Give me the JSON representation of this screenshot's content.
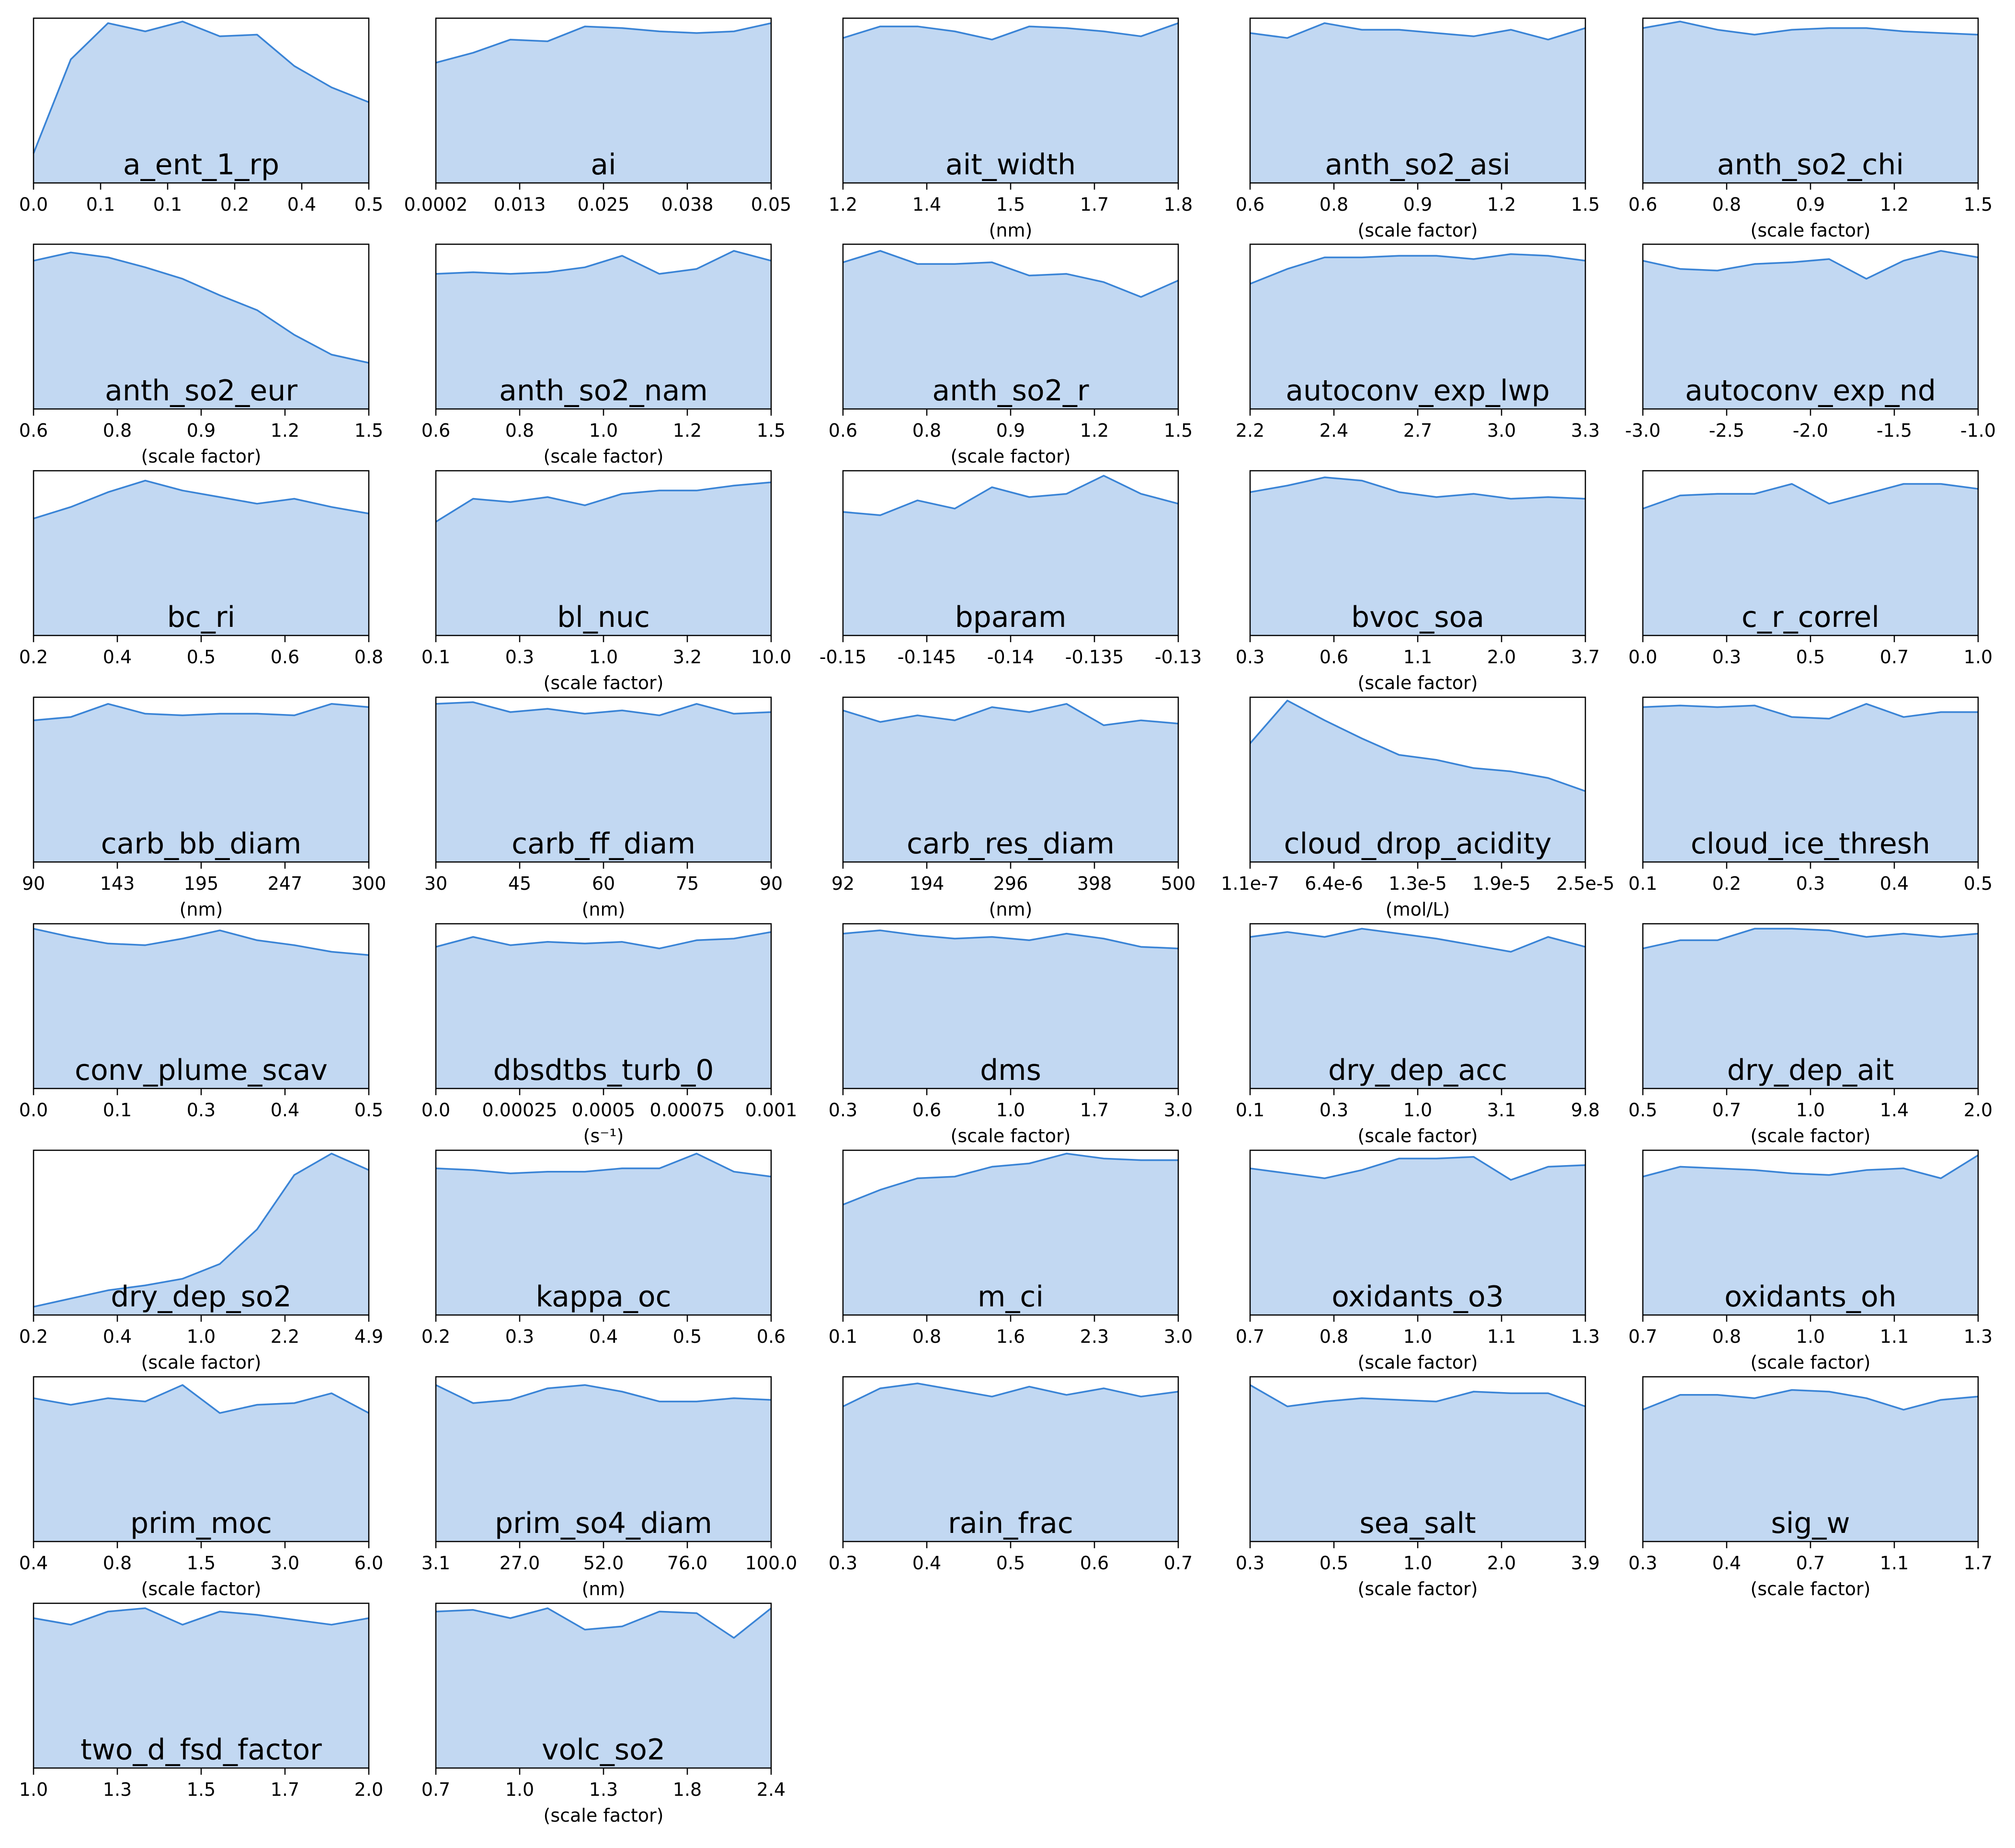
{
  "style": {
    "fill_color": "#c2d8f2",
    "line_color": "#3a84d6",
    "frame_color": "#000000"
  },
  "chart_data": [
    {
      "type": "area",
      "title": "a_ent_1_rp",
      "xlabel": "",
      "ticks": [
        "0.0",
        "0.1",
        "0.1",
        "0.2",
        "0.4",
        "0.5"
      ],
      "values": [
        0.18,
        0.75,
        0.97,
        0.92,
        0.98,
        0.89,
        0.9,
        0.71,
        0.58,
        0.49
      ]
    },
    {
      "type": "area",
      "title": "ai",
      "xlabel": "",
      "ticks": [
        "0.0002",
        "0.013",
        "0.025",
        "0.038",
        "0.05"
      ],
      "values": [
        0.73,
        0.79,
        0.87,
        0.86,
        0.95,
        0.94,
        0.92,
        0.91,
        0.92,
        0.97
      ]
    },
    {
      "type": "area",
      "title": "ait_width",
      "xlabel": "(nm)",
      "ticks": [
        "1.2",
        "1.4",
        "1.5",
        "1.7",
        "1.8"
      ],
      "values": [
        0.88,
        0.95,
        0.95,
        0.92,
        0.87,
        0.95,
        0.94,
        0.92,
        0.89,
        0.97
      ]
    },
    {
      "type": "area",
      "title": "anth_so2_asi",
      "xlabel": "(scale factor)",
      "ticks": [
        "0.6",
        "0.8",
        "0.9",
        "1.2",
        "1.5"
      ],
      "values": [
        0.91,
        0.88,
        0.97,
        0.93,
        0.93,
        0.91,
        0.89,
        0.93,
        0.87,
        0.94
      ]
    },
    {
      "type": "area",
      "title": "anth_so2_chi",
      "xlabel": "(scale factor)",
      "ticks": [
        "0.6",
        "0.8",
        "0.9",
        "1.2",
        "1.5"
      ],
      "values": [
        0.94,
        0.98,
        0.93,
        0.9,
        0.93,
        0.94,
        0.94,
        0.92,
        0.91,
        0.9
      ]
    },
    {
      "type": "area",
      "title": "anth_so2_eur",
      "xlabel": "(scale factor)",
      "ticks": [
        "0.6",
        "0.8",
        "0.9",
        "1.2",
        "1.5"
      ],
      "values": [
        0.9,
        0.95,
        0.92,
        0.86,
        0.79,
        0.69,
        0.6,
        0.45,
        0.33,
        0.28
      ]
    },
    {
      "type": "area",
      "title": "anth_so2_nam",
      "xlabel": "(scale factor)",
      "ticks": [
        "0.6",
        "0.8",
        "1.0",
        "1.2",
        "1.5"
      ],
      "values": [
        0.82,
        0.83,
        0.82,
        0.83,
        0.86,
        0.93,
        0.82,
        0.85,
        0.96,
        0.9
      ]
    },
    {
      "type": "area",
      "title": "anth_so2_r",
      "xlabel": "(scale factor)",
      "ticks": [
        "0.6",
        "0.8",
        "0.9",
        "1.2",
        "1.5"
      ],
      "values": [
        0.89,
        0.96,
        0.88,
        0.88,
        0.89,
        0.81,
        0.82,
        0.77,
        0.68,
        0.78
      ]
    },
    {
      "type": "area",
      "title": "autoconv_exp_lwp",
      "xlabel": "",
      "ticks": [
        "2.2",
        "2.4",
        "2.7",
        "3.0",
        "3.3"
      ],
      "values": [
        0.76,
        0.85,
        0.92,
        0.92,
        0.93,
        0.93,
        0.91,
        0.94,
        0.93,
        0.9
      ]
    },
    {
      "type": "area",
      "title": "autoconv_exp_nd",
      "xlabel": "",
      "ticks": [
        "-3.0",
        "-2.5",
        "-2.0",
        "-1.5",
        "-1.0"
      ],
      "values": [
        0.9,
        0.85,
        0.84,
        0.88,
        0.89,
        0.91,
        0.79,
        0.9,
        0.96,
        0.92
      ]
    },
    {
      "type": "area",
      "title": "bc_ri",
      "xlabel": "",
      "ticks": [
        "0.2",
        "0.4",
        "0.5",
        "0.6",
        "0.8"
      ],
      "values": [
        0.71,
        0.78,
        0.87,
        0.94,
        0.88,
        0.84,
        0.8,
        0.83,
        0.78,
        0.74
      ]
    },
    {
      "type": "area",
      "title": "bl_nuc",
      "xlabel": "(scale factor)",
      "ticks": [
        "0.1",
        "0.3",
        "1.0",
        "3.2",
        "10.0"
      ],
      "values": [
        0.69,
        0.83,
        0.81,
        0.84,
        0.79,
        0.86,
        0.88,
        0.88,
        0.91,
        0.93
      ]
    },
    {
      "type": "area",
      "title": "bparam",
      "xlabel": "",
      "ticks": [
        "-0.15",
        "-0.145",
        "-0.14",
        "-0.135",
        "-0.13"
      ],
      "values": [
        0.75,
        0.73,
        0.82,
        0.77,
        0.9,
        0.84,
        0.86,
        0.97,
        0.86,
        0.8
      ]
    },
    {
      "type": "area",
      "title": "bvoc_soa",
      "xlabel": "(scale factor)",
      "ticks": [
        "0.3",
        "0.6",
        "1.1",
        "2.0",
        "3.7"
      ],
      "values": [
        0.87,
        0.91,
        0.96,
        0.94,
        0.87,
        0.84,
        0.86,
        0.83,
        0.84,
        0.83
      ]
    },
    {
      "type": "area",
      "title": "c_r_correl",
      "xlabel": "",
      "ticks": [
        "0.0",
        "0.3",
        "0.5",
        "0.7",
        "1.0"
      ],
      "values": [
        0.77,
        0.85,
        0.86,
        0.86,
        0.92,
        0.8,
        0.86,
        0.92,
        0.92,
        0.89
      ]
    },
    {
      "type": "area",
      "title": "carb_bb_diam",
      "xlabel": "(nm)",
      "ticks": [
        "90",
        "143",
        "195",
        "247",
        "300"
      ],
      "values": [
        0.86,
        0.88,
        0.96,
        0.9,
        0.89,
        0.9,
        0.9,
        0.89,
        0.96,
        0.94
      ]
    },
    {
      "type": "area",
      "title": "carb_ff_diam",
      "xlabel": "(nm)",
      "ticks": [
        "30",
        "45",
        "60",
        "75",
        "90"
      ],
      "values": [
        0.96,
        0.97,
        0.91,
        0.93,
        0.9,
        0.92,
        0.89,
        0.96,
        0.9,
        0.91
      ]
    },
    {
      "type": "area",
      "title": "carb_res_diam",
      "xlabel": "(nm)",
      "ticks": [
        "92",
        "194",
        "296",
        "398",
        "500"
      ],
      "values": [
        0.92,
        0.85,
        0.89,
        0.86,
        0.94,
        0.91,
        0.96,
        0.83,
        0.86,
        0.84
      ]
    },
    {
      "type": "area",
      "title": "cloud_drop_acidity",
      "xlabel": "(mol/L)",
      "ticks": [
        "1.1e-7",
        "6.4e-6",
        "1.3e-5",
        "1.9e-5",
        "2.5e-5"
      ],
      "values": [
        0.72,
        0.98,
        0.86,
        0.75,
        0.65,
        0.62,
        0.57,
        0.55,
        0.51,
        0.43
      ]
    },
    {
      "type": "area",
      "title": "cloud_ice_thresh",
      "xlabel": "",
      "ticks": [
        "0.1",
        "0.2",
        "0.3",
        "0.4",
        "0.5"
      ],
      "values": [
        0.94,
        0.95,
        0.94,
        0.95,
        0.88,
        0.87,
        0.96,
        0.88,
        0.91,
        0.91
      ]
    },
    {
      "type": "area",
      "title": "conv_plume_scav",
      "xlabel": "",
      "ticks": [
        "0.0",
        "0.1",
        "0.3",
        "0.4",
        "0.5"
      ],
      "values": [
        0.97,
        0.92,
        0.88,
        0.87,
        0.91,
        0.96,
        0.9,
        0.87,
        0.83,
        0.81
      ]
    },
    {
      "type": "area",
      "title": "dbsdtbs_turb_0",
      "xlabel": "(s⁻¹)",
      "ticks": [
        "0.0",
        "0.00025",
        "0.0005",
        "0.00075",
        "0.001"
      ],
      "values": [
        0.86,
        0.92,
        0.87,
        0.89,
        0.88,
        0.89,
        0.85,
        0.9,
        0.91,
        0.95
      ]
    },
    {
      "type": "area",
      "title": "dms",
      "xlabel": "(scale factor)",
      "ticks": [
        "0.3",
        "0.6",
        "1.0",
        "1.7",
        "3.0"
      ],
      "values": [
        0.94,
        0.96,
        0.93,
        0.91,
        0.92,
        0.9,
        0.94,
        0.91,
        0.86,
        0.85
      ]
    },
    {
      "type": "area",
      "title": "dry_dep_acc",
      "xlabel": "(scale factor)",
      "ticks": [
        "0.1",
        "0.3",
        "1.0",
        "3.1",
        "9.8"
      ],
      "values": [
        0.92,
        0.95,
        0.92,
        0.97,
        0.94,
        0.91,
        0.87,
        0.83,
        0.92,
        0.86
      ]
    },
    {
      "type": "area",
      "title": "dry_dep_ait",
      "xlabel": "(scale factor)",
      "ticks": [
        "0.5",
        "0.7",
        "1.0",
        "1.4",
        "2.0"
      ],
      "values": [
        0.85,
        0.9,
        0.9,
        0.97,
        0.97,
        0.96,
        0.92,
        0.94,
        0.92,
        0.94
      ]
    },
    {
      "type": "area",
      "title": "dry_dep_so2",
      "xlabel": "(scale factor)",
      "ticks": [
        "0.2",
        "0.4",
        "1.0",
        "2.2",
        "4.9"
      ],
      "values": [
        0.05,
        0.1,
        0.15,
        0.18,
        0.22,
        0.31,
        0.52,
        0.85,
        0.98,
        0.88
      ]
    },
    {
      "type": "area",
      "title": "kappa_oc",
      "xlabel": "",
      "ticks": [
        "0.2",
        "0.3",
        "0.4",
        "0.5",
        "0.6"
      ],
      "values": [
        0.89,
        0.88,
        0.86,
        0.87,
        0.87,
        0.89,
        0.89,
        0.98,
        0.87,
        0.84
      ]
    },
    {
      "type": "area",
      "title": "m_ci",
      "xlabel": "",
      "ticks": [
        "0.1",
        "0.8",
        "1.6",
        "2.3",
        "3.0"
      ],
      "values": [
        0.67,
        0.76,
        0.83,
        0.84,
        0.9,
        0.92,
        0.98,
        0.95,
        0.94,
        0.94
      ]
    },
    {
      "type": "area",
      "title": "oxidants_o3",
      "xlabel": "(scale factor)",
      "ticks": [
        "0.7",
        "0.8",
        "1.0",
        "1.1",
        "1.3"
      ],
      "values": [
        0.89,
        0.86,
        0.83,
        0.88,
        0.95,
        0.95,
        0.96,
        0.82,
        0.9,
        0.91
      ]
    },
    {
      "type": "area",
      "title": "oxidants_oh",
      "xlabel": "(scale factor)",
      "ticks": [
        "0.7",
        "0.8",
        "1.0",
        "1.1",
        "1.3"
      ],
      "values": [
        0.84,
        0.9,
        0.89,
        0.88,
        0.86,
        0.85,
        0.88,
        0.89,
        0.83,
        0.97
      ]
    },
    {
      "type": "area",
      "title": "prim_moc",
      "xlabel": "(scale factor)",
      "ticks": [
        "0.4",
        "0.8",
        "1.5",
        "3.0",
        "6.0"
      ],
      "values": [
        0.87,
        0.83,
        0.87,
        0.85,
        0.95,
        0.78,
        0.83,
        0.84,
        0.9,
        0.78
      ]
    },
    {
      "type": "area",
      "title": "prim_so4_diam",
      "xlabel": "(nm)",
      "ticks": [
        "3.1",
        "27.0",
        "52.0",
        "76.0",
        "100.0"
      ],
      "values": [
        0.95,
        0.84,
        0.86,
        0.93,
        0.95,
        0.91,
        0.85,
        0.85,
        0.87,
        0.86
      ]
    },
    {
      "type": "area",
      "title": "rain_frac",
      "xlabel": "",
      "ticks": [
        "0.3",
        "0.4",
        "0.5",
        "0.6",
        "0.7"
      ],
      "values": [
        0.82,
        0.93,
        0.96,
        0.92,
        0.88,
        0.94,
        0.89,
        0.93,
        0.88,
        0.91
      ]
    },
    {
      "type": "area",
      "title": "sea_salt",
      "xlabel": "(scale factor)",
      "ticks": [
        "0.3",
        "0.5",
        "1.0",
        "2.0",
        "3.9"
      ],
      "values": [
        0.95,
        0.82,
        0.85,
        0.87,
        0.86,
        0.85,
        0.91,
        0.9,
        0.9,
        0.82
      ]
    },
    {
      "type": "area",
      "title": "sig_w",
      "xlabel": "(scale factor)",
      "ticks": [
        "0.3",
        "0.4",
        "0.7",
        "1.1",
        "1.7"
      ],
      "values": [
        0.8,
        0.89,
        0.89,
        0.87,
        0.92,
        0.91,
        0.87,
        0.8,
        0.86,
        0.88
      ]
    },
    {
      "type": "area",
      "title": "two_d_fsd_factor",
      "xlabel": "",
      "ticks": [
        "1.0",
        "1.3",
        "1.5",
        "1.7",
        "2.0"
      ],
      "values": [
        0.91,
        0.87,
        0.95,
        0.97,
        0.87,
        0.95,
        0.93,
        0.9,
        0.87,
        0.91
      ]
    },
    {
      "type": "area",
      "title": "volc_so2",
      "xlabel": "(scale factor)",
      "ticks": [
        "0.7",
        "1.0",
        "1.3",
        "1.8",
        "2.4"
      ],
      "values": [
        0.95,
        0.96,
        0.91,
        0.97,
        0.84,
        0.86,
        0.95,
        0.94,
        0.79,
        0.97
      ]
    }
  ]
}
